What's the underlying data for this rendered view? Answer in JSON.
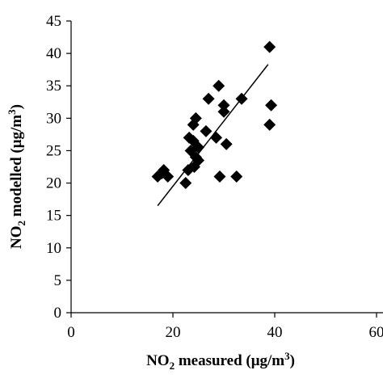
{
  "chart_data": {
    "type": "scatter",
    "x_label": {
      "base": "NO",
      "sub": "2",
      "mid": " measured (μg/m",
      "sup": "3",
      "end": ")"
    },
    "y_label": {
      "base": "NO",
      "sub": "2",
      "mid": " modelled (μg/m",
      "sup": "3",
      "end": ")"
    },
    "xlim": [
      0,
      60
    ],
    "ylim": [
      0,
      45
    ],
    "x_ticks": [
      "0",
      "20",
      "40",
      "60"
    ],
    "y_ticks": [
      "0",
      "5",
      "10",
      "15",
      "20",
      "25",
      "30",
      "35",
      "40",
      "45"
    ],
    "grid": false,
    "marker": "diamond",
    "points": [
      {
        "x": 17.0,
        "y": 21.0
      },
      {
        "x": 17.8,
        "y": 21.5
      },
      {
        "x": 18.2,
        "y": 22.0
      },
      {
        "x": 19.0,
        "y": 21.0
      },
      {
        "x": 22.5,
        "y": 20.0
      },
      {
        "x": 23.0,
        "y": 22.0
      },
      {
        "x": 23.5,
        "y": 25.0
      },
      {
        "x": 23.2,
        "y": 27.0
      },
      {
        "x": 24.0,
        "y": 26.5
      },
      {
        "x": 24.0,
        "y": 29.0
      },
      {
        "x": 24.5,
        "y": 30.0
      },
      {
        "x": 24.5,
        "y": 24.0
      },
      {
        "x": 24.2,
        "y": 22.5
      },
      {
        "x": 25.0,
        "y": 23.5
      },
      {
        "x": 25.0,
        "y": 25.5
      },
      {
        "x": 26.5,
        "y": 28.0
      },
      {
        "x": 27.0,
        "y": 33.0
      },
      {
        "x": 28.5,
        "y": 27.0
      },
      {
        "x": 29.0,
        "y": 35.0
      },
      {
        "x": 29.2,
        "y": 21.0
      },
      {
        "x": 30.0,
        "y": 32.0
      },
      {
        "x": 30.0,
        "y": 31.0
      },
      {
        "x": 30.5,
        "y": 26.0
      },
      {
        "x": 32.5,
        "y": 21.0
      },
      {
        "x": 33.5,
        "y": 33.0
      },
      {
        "x": 39.0,
        "y": 41.0
      },
      {
        "x": 39.0,
        "y": 29.0
      },
      {
        "x": 39.3,
        "y": 32.0
      }
    ],
    "trendline": {
      "x": [
        17.0,
        38.7
      ],
      "y": [
        16.5,
        38.3
      ]
    }
  }
}
